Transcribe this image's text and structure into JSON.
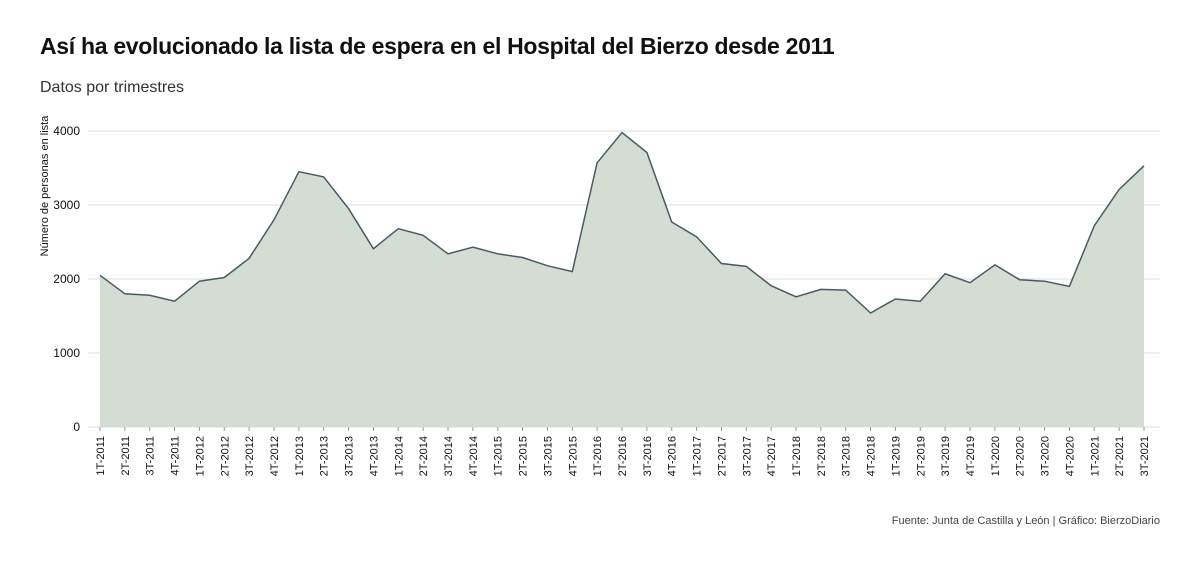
{
  "title": "Así ha evolucionado la lista de espera en el Hospital del Bierzo desde 2011",
  "subtitle": "Datos por trimestres",
  "source": "Fuente: Junta de Castilla y León | Gráfico: BierzoDiario",
  "chart_data": {
    "type": "area",
    "title": "Así ha evolucionado la lista de espera en el Hospital del Bierzo desde 2011",
    "subtitle": "Datos por trimestres",
    "xlabel": "",
    "ylabel": "Número de personas en lista",
    "ylim": [
      0,
      4000
    ],
    "yticks": [
      0,
      1000,
      2000,
      3000,
      4000
    ],
    "grid": true,
    "fill_color": "#d4ddd3",
    "line_color": "#4a5a63",
    "categories": [
      "1T-2011",
      "2T-2011",
      "3T-2011",
      "4T-2011",
      "1T-2012",
      "2T-2012",
      "3T-2012",
      "4T-2012",
      "1T-2013",
      "2T-2013",
      "3T-2013",
      "4T-2013",
      "1T-2014",
      "2T-2014",
      "3T-2014",
      "4T-2014",
      "1T-2015",
      "2T-2015",
      "3T-2015",
      "4T-2015",
      "1T-2016",
      "2T-2016",
      "3T-2016",
      "4T-2016",
      "1T-2017",
      "2T-2017",
      "3T-2017",
      "4T-2017",
      "1T-2018",
      "2T-2018",
      "3T-2018",
      "4T-2018",
      "1T-2019",
      "2T-2019",
      "3T-2019",
      "4T-2019",
      "1T-2020",
      "2T-2020",
      "3T-2020",
      "4T-2020",
      "1T-2021",
      "2T-2021",
      "3T-2021"
    ],
    "values": [
      2050,
      1800,
      1780,
      1700,
      1970,
      2020,
      2280,
      2800,
      3450,
      3380,
      2950,
      2410,
      2680,
      2590,
      2340,
      2430,
      2340,
      2290,
      2180,
      2100,
      3570,
      3980,
      3710,
      2770,
      2570,
      2210,
      2170,
      1910,
      1760,
      1860,
      1850,
      1540,
      1730,
      1700,
      2070,
      1950,
      2190,
      1990,
      1970,
      1900,
      2720,
      3210,
      3530
    ]
  }
}
